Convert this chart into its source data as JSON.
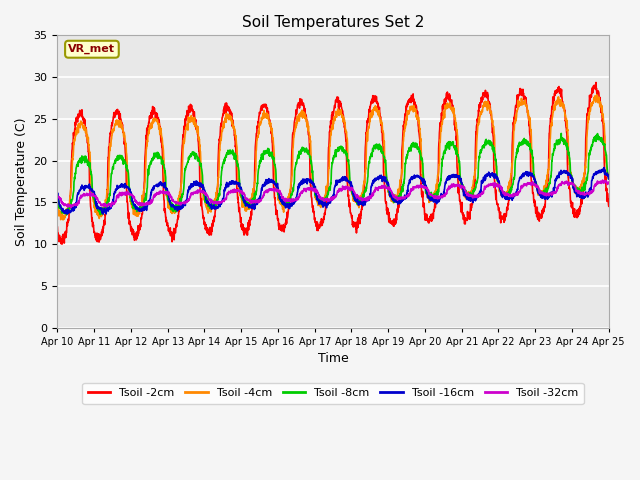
{
  "title": "Soil Temperatures Set 2",
  "xlabel": "Time",
  "ylabel": "Soil Temperature (C)",
  "ylim": [
    0,
    35
  ],
  "annotation_text": "VR_met",
  "annotation_color": "#8b0000",
  "annotation_bg": "#ffffcc",
  "annotation_border": "#999900",
  "x_tick_labels": [
    "Apr 10",
    "Apr 11",
    "Apr 12",
    "Apr 13",
    "Apr 14",
    "Apr 15",
    "Apr 16",
    "Apr 17",
    "Apr 18",
    "Apr 19",
    "Apr 20",
    "Apr 21",
    "Apr 22",
    "Apr 23",
    "Apr 24",
    "Apr 25"
  ],
  "series": {
    "Tsoil -2cm": {
      "color": "#ff0000",
      "lw": 1.2
    },
    "Tsoil -4cm": {
      "color": "#ff8800",
      "lw": 1.2
    },
    "Tsoil -8cm": {
      "color": "#00cc00",
      "lw": 1.2
    },
    "Tsoil -16cm": {
      "color": "#0000cc",
      "lw": 1.2
    },
    "Tsoil -32cm": {
      "color": "#cc00cc",
      "lw": 1.2
    }
  },
  "bg_color": "#e8e8e8",
  "grid_color": "#ffffff",
  "n_days": 15,
  "samples_per_day": 144
}
